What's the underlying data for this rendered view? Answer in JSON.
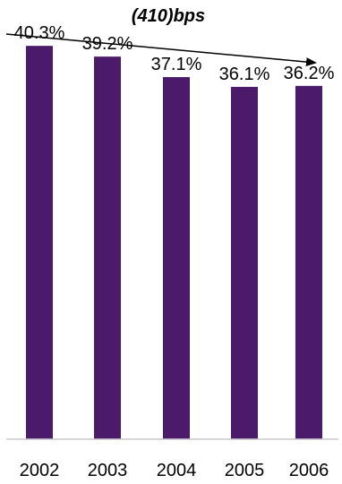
{
  "chart_data": {
    "type": "bar",
    "title": "",
    "xlabel": "",
    "ylabel": "",
    "categories": [
      "2002",
      "2003",
      "2004",
      "2005",
      "2006"
    ],
    "values": [
      40.3,
      39.2,
      37.1,
      36.1,
      36.2
    ],
    "data_labels": [
      "40.3%",
      "39.2%",
      "37.1%",
      "36.1%",
      "36.2%"
    ],
    "ylim": [
      0,
      45
    ],
    "grid": false,
    "legend": "none",
    "bar_color": "#4b1a6b",
    "axis_color": "#c8c8c8",
    "annotation": {
      "text": "(410)bps",
      "type": "trend-arrow-down"
    }
  }
}
